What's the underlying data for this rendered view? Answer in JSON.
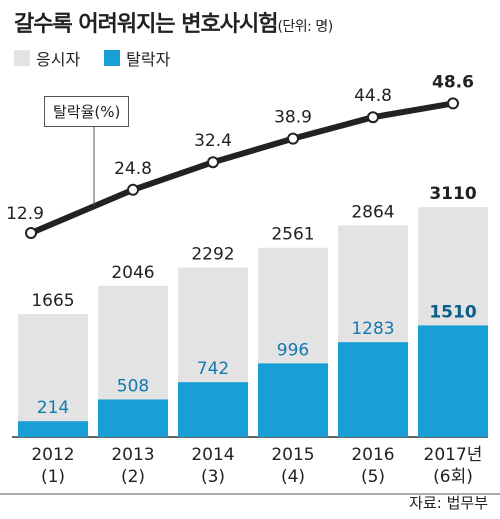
{
  "title": "갈수록 어려워지는 변호사시험",
  "unit": "(단위: 명)",
  "legend": [
    {
      "label": "응시자",
      "color": "#e3e3e3"
    },
    {
      "label": "탈락자",
      "color": "#1a9ed6"
    }
  ],
  "line_label": "탈락율(%)",
  "source": "자료: 법무부",
  "chart_data": {
    "type": "bar",
    "categories": [
      "2012\n(1)",
      "2013\n(2)",
      "2014\n(3)",
      "2015\n(4)",
      "2016\n(5)",
      "2017년\n(6회)"
    ],
    "series": [
      {
        "name": "응시자",
        "values": [
          1665,
          2046,
          2292,
          2561,
          2864,
          3110
        ]
      },
      {
        "name": "탈락자",
        "values": [
          214,
          508,
          742,
          996,
          1283,
          1510
        ]
      }
    ],
    "line_series": {
      "name": "탈락율(%)",
      "values": [
        12.9,
        24.8,
        32.4,
        38.9,
        44.8,
        48.6
      ]
    },
    "ylim": [
      0,
      3200
    ]
  }
}
